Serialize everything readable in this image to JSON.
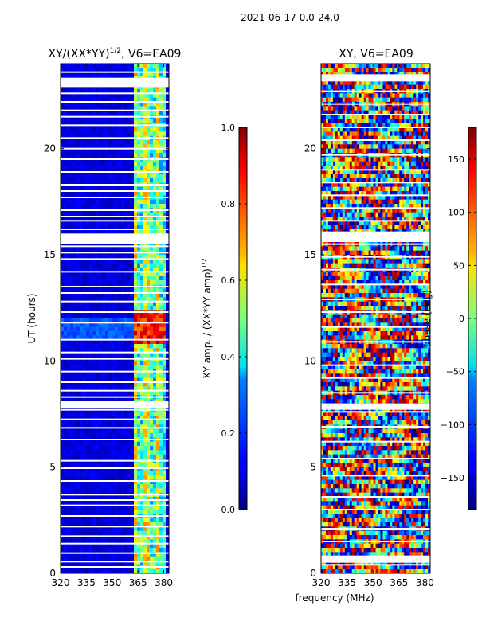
{
  "suptitle": "2021-06-17 0.0-24.0",
  "xlabel": "frequency (MHz)",
  "chart_data": [
    {
      "type": "heatmap",
      "title_base": "XY/(XX*YY)",
      "title_sup": "1/2",
      "title_suffix": ", V6=EA09",
      "xlabel": "frequency (MHz)",
      "ylabel": "UT (hours)",
      "xlim": [
        320,
        383
      ],
      "ylim": [
        0,
        24
      ],
      "xticks": [
        "320",
        "335",
        "350",
        "365",
        "380"
      ],
      "yticks": [
        "0",
        "5",
        "10",
        "15",
        "20"
      ],
      "colorbar": {
        "label_base": "XY amp. / (XX*YY amp)",
        "label_sup": "1/2",
        "range": [
          0.0,
          1.0
        ],
        "ticks": [
          "0.0",
          "0.2",
          "0.4",
          "0.6",
          "0.8",
          "1.0"
        ],
        "colormap": "jet"
      },
      "blank_hours": [
        0.3,
        0.55,
        0.95,
        1.4,
        1.75,
        2.2,
        2.7,
        3.2,
        3.45,
        3.7,
        4.35,
        4.95,
        5.3,
        6.3,
        6.85,
        7.25,
        7.7,
        7.9,
        8.3,
        8.6,
        9.0,
        9.5,
        10.1,
        10.4,
        11.0,
        11.8,
        12.3,
        12.8,
        13.2,
        13.5,
        14.2,
        14.8,
        15.1,
        15.4,
        15.7,
        16.2,
        16.6,
        16.8,
        17.1,
        17.7,
        18.0,
        18.3,
        18.9,
        19.5,
        20.0,
        20.5,
        21.1,
        21.5,
        21.8,
        22.2,
        22.6,
        23.0,
        23.3,
        23.6
      ],
      "wide_gaps": [
        [
          7.8,
          8.1
        ],
        [
          15.5,
          16.0
        ],
        [
          22.9,
          23.3
        ]
      ],
      "summary": "Amplitude is low (~0.05-0.15) across 320-362 MHz; higher (0.3-0.9) in 362-381 MHz band, peaking near 11-12 UT."
    },
    {
      "type": "heatmap",
      "title": "XY, V6=EA09",
      "xlabel": "frequency (MHz)",
      "ylabel": "",
      "xlim": [
        320,
        383
      ],
      "ylim": [
        0,
        24
      ],
      "xticks": [
        "320",
        "335",
        "350",
        "365",
        "380"
      ],
      "yticks": [
        "0",
        "5",
        "10",
        "15",
        "20"
      ],
      "colorbar": {
        "label": "phase (deg)",
        "range": [
          -180,
          180
        ],
        "ticks": [
          "150",
          "100",
          "50",
          "0",
          "−50",
          "−100",
          "−150"
        ],
        "colormap": "jet"
      },
      "blank_hours": [
        0.4,
        0.8,
        1.5,
        2.1,
        3.0,
        3.6,
        4.6,
        5.4,
        6.2,
        6.9,
        7.6,
        7.9,
        8.5,
        9.2,
        9.8,
        10.9,
        11.6,
        12.3,
        12.9,
        13.6,
        14.3,
        14.9,
        15.5,
        15.9,
        16.6,
        17.2,
        17.8,
        18.4,
        19.0,
        19.7,
        20.4,
        21.0,
        21.6,
        22.1,
        22.7,
        23.2
      ],
      "wide_gaps": [
        [
          0.5,
          0.8
        ],
        [
          7.7,
          8.0
        ],
        [
          15.6,
          16.1
        ],
        [
          23.2,
          23.5
        ]
      ],
      "summary": "Phase varies widely across the full -180 to 180 deg range, with horizontal banding in time."
    }
  ]
}
